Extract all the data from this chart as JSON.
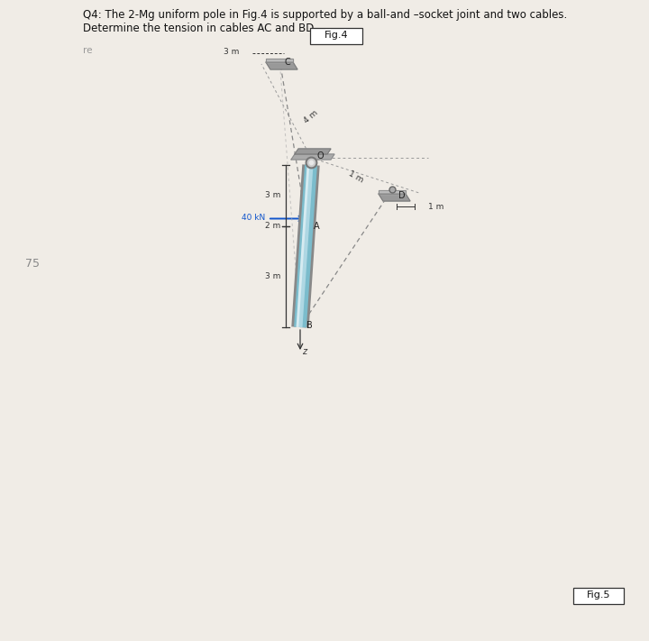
{
  "title_line1": "Q4: The 2-Mg uniform pole in Fig.4 is supported by a ball-and –socket joint and two cables.",
  "title_line2": "Determine the tension in cables AC and BD.",
  "background_color": "#f0ece6",
  "fig_label": "Fig.4",
  "fig5_label": "Fig.5",
  "watermark_left": "re",
  "watermark_num": "75",
  "pole_color_light": "#b8dde8",
  "pole_color_mid": "#7bbccc",
  "pole_color_dark": "#5a9aaa",
  "cable_color": "#aaaaaa",
  "force_arrow_color": "#1155cc",
  "title_fontsize": 8.5,
  "label_fontsize": 7.0,
  "dim_fontsize": 6.5,
  "force_label": "40 kN",
  "dim_3m_top": "3 m",
  "dim_2m": "2 m",
  "dim_3m_bot": "3 m",
  "dim_1m_diag": "1 m",
  "dim_1m_horiz": "1 m",
  "dim_3m_c": "3 m",
  "dim_4m": "4 m"
}
